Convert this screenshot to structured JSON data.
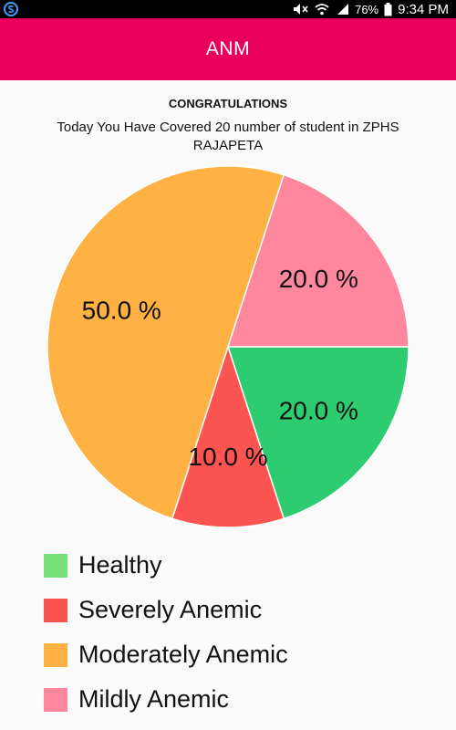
{
  "status_bar": {
    "battery": "76%",
    "time": "9:34 PM",
    "icons": [
      "s-app-icon",
      "mute-icon",
      "wifi-icon",
      "signal-icon",
      "battery-icon"
    ]
  },
  "app_bar": {
    "title": "ANM"
  },
  "summary": {
    "heading": "CONGRATULATIONS",
    "message": "Today You Have Covered 20 number of student in ZPHS RAJAPETA"
  },
  "chart_data": {
    "type": "pie",
    "title": "",
    "slices": [
      {
        "name": "Healthy",
        "value": 20.0,
        "label": "20.0 %",
        "color": "#2ecc71"
      },
      {
        "name": "Severely Anemic",
        "value": 10.0,
        "label": "10.0 %",
        "color": "#fc5450"
      },
      {
        "name": "Moderately Anemic",
        "value": 50.0,
        "label": "50.0 %",
        "color": "#ffb144"
      },
      {
        "name": "Mildly Anemic",
        "value": 20.0,
        "label": "20.0 %",
        "color": "#fe869d"
      }
    ],
    "legend_position": "bottom-left"
  },
  "legend": {
    "items": [
      {
        "label": "Healthy",
        "color": "#77e27b"
      },
      {
        "label": "Severely Anemic",
        "color": "#fc5450"
      },
      {
        "label": "Moderately Anemic",
        "color": "#ffb144"
      },
      {
        "label": "Mildly Anemic",
        "color": "#fe869d"
      }
    ]
  }
}
